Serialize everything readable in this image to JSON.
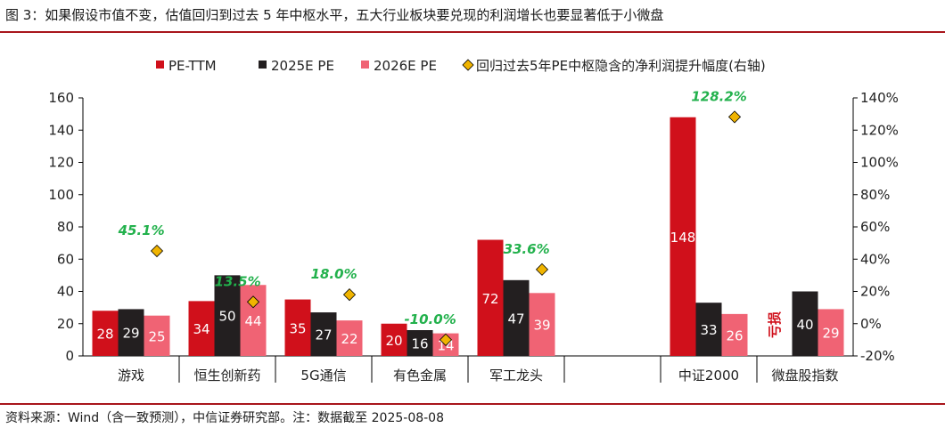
{
  "caption": "图 3：如果假设市值不变，估值回归到过去 5 年中枢水平，五大行业板块要兑现的利润增长也要显著低于小微盘",
  "source": "资料来源：Wind（含一致预测），中信证券研究部。注：数据截至 2025-08-08",
  "chart_data": {
    "type": "bar",
    "categories": [
      "游戏",
      "恒生创新药",
      "5G通信",
      "有色金属",
      "军工龙头",
      "",
      "中证2000",
      "微盘股指数"
    ],
    "series": [
      {
        "name": "PE-TTM",
        "color": "#d0101b",
        "values": [
          28,
          34,
          35,
          20,
          72,
          null,
          148,
          null
        ],
        "labels": [
          "28",
          "34",
          "35",
          "20",
          "72",
          "",
          "148",
          "亏损"
        ]
      },
      {
        "name": "2025E PE",
        "color": "#231f20",
        "values": [
          29,
          50,
          27,
          16,
          47,
          null,
          33,
          40
        ],
        "labels": [
          "29",
          "50",
          "27",
          "16",
          "47",
          "",
          "33",
          "40"
        ]
      },
      {
        "name": "2026E PE",
        "color": "#f06374",
        "values": [
          25,
          44,
          22,
          14,
          39,
          null,
          26,
          29
        ],
        "labels": [
          "25",
          "44",
          "22",
          "14",
          "39",
          "",
          "26",
          "29"
        ]
      }
    ],
    "line_series": {
      "name": "回归过去5年PE中枢隐含的净利润提升幅度(右轴)",
      "axis": "right",
      "marker_color": "#f0b400",
      "values": [
        45.1,
        13.5,
        18.0,
        -10.0,
        33.6,
        null,
        128.2,
        null
      ],
      "labels": [
        "45.1%",
        "13.5%",
        "18.0%",
        "-10.0%",
        "33.6%",
        "",
        "128.2%",
        ""
      ],
      "label_color": "#22b14c"
    },
    "y_left": {
      "min": 0,
      "max": 160,
      "ticks": [
        0,
        20,
        40,
        60,
        80,
        100,
        120,
        140,
        160
      ]
    },
    "y_right": {
      "min": -20,
      "max": 140,
      "ticks": [
        -20,
        0,
        20,
        40,
        60,
        80,
        100,
        120,
        140
      ],
      "tick_labels": [
        "-20%",
        "0%",
        "20%",
        "40%",
        "60%",
        "80%",
        "100%",
        "120%",
        "140%"
      ]
    },
    "legend_position": "top-center",
    "grid": false,
    "title": "",
    "xlabel": "",
    "ylabel": ""
  }
}
